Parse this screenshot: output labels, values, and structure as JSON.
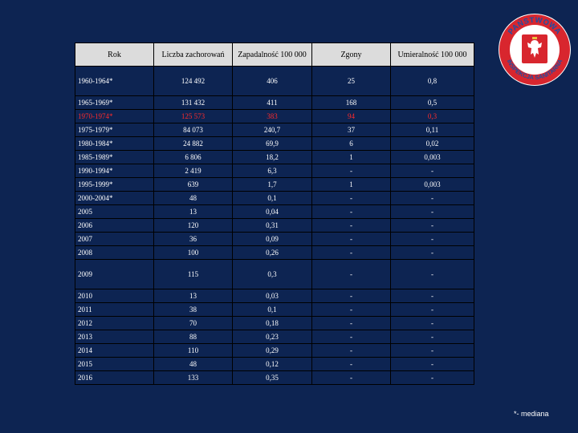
{
  "table": {
    "headers": [
      "Rok",
      "Liczba zachorowań",
      "Zapadalność 100 000",
      "Zgony",
      "Umieralność 100 000"
    ],
    "rows": [
      {
        "rok": "1960-1964*",
        "zachorowania": "124 492",
        "zapadalnosc": "406",
        "zgony": "25",
        "umieralnosc": "0,8",
        "tall": true,
        "highlight": false
      },
      {
        "rok": "1965-1969*",
        "zachorowania": "131 432",
        "zapadalnosc": "411",
        "zgony": "168",
        "umieralnosc": "0,5",
        "tall": false,
        "highlight": false
      },
      {
        "rok": "1970-1974*",
        "zachorowania": "125 573",
        "zapadalnosc": "383",
        "zgony": "94",
        "umieralnosc": "0,3",
        "tall": false,
        "highlight": true
      },
      {
        "rok": "1975-1979*",
        "zachorowania": "84 073",
        "zapadalnosc": "240,7",
        "zgony": "37",
        "umieralnosc": "0,11",
        "tall": false,
        "highlight": false
      },
      {
        "rok": "1980-1984*",
        "zachorowania": "24 882",
        "zapadalnosc": "69,9",
        "zgony": "6",
        "umieralnosc": "0,02",
        "tall": false,
        "highlight": false
      },
      {
        "rok": "1985-1989*",
        "zachorowania": "6 806",
        "zapadalnosc": "18,2",
        "zgony": "1",
        "umieralnosc": "0,003",
        "tall": false,
        "highlight": false
      },
      {
        "rok": "1990-1994*",
        "zachorowania": "2 419",
        "zapadalnosc": "6,3",
        "zgony": "-",
        "umieralnosc": "-",
        "tall": false,
        "highlight": false
      },
      {
        "rok": "1995-1999*",
        "zachorowania": "639",
        "zapadalnosc": "1,7",
        "zgony": "1",
        "umieralnosc": "0,003",
        "tall": false,
        "highlight": false
      },
      {
        "rok": "2000-2004*",
        "zachorowania": "48",
        "zapadalnosc": "0,1",
        "zgony": "-",
        "umieralnosc": "-",
        "tall": false,
        "highlight": false
      },
      {
        "rok": "2005",
        "zachorowania": "13",
        "zapadalnosc": "0,04",
        "zgony": "-",
        "umieralnosc": "-",
        "tall": false,
        "highlight": false
      },
      {
        "rok": "2006",
        "zachorowania": "120",
        "zapadalnosc": "0,31",
        "zgony": "-",
        "umieralnosc": "-",
        "tall": false,
        "highlight": false
      },
      {
        "rok": "2007",
        "zachorowania": "36",
        "zapadalnosc": "0,09",
        "zgony": "-",
        "umieralnosc": "-",
        "tall": false,
        "highlight": false
      },
      {
        "rok": "2008",
        "zachorowania": "100",
        "zapadalnosc": "0,26",
        "zgony": "-",
        "umieralnosc": "-",
        "tall": false,
        "highlight": false
      },
      {
        "rok": "2009",
        "zachorowania": "115",
        "zapadalnosc": "0,3",
        "zgony": "-",
        "umieralnosc": "-",
        "tall": true,
        "highlight": false
      },
      {
        "rok": "2010",
        "zachorowania": "13",
        "zapadalnosc": "0,03",
        "zgony": "-",
        "umieralnosc": "-",
        "tall": false,
        "highlight": false
      },
      {
        "rok": "2011",
        "zachorowania": "38",
        "zapadalnosc": "0,1",
        "zgony": "-",
        "umieralnosc": "-",
        "tall": false,
        "highlight": false
      },
      {
        "rok": "2012",
        "zachorowania": "70",
        "zapadalnosc": "0,18",
        "zgony": "-",
        "umieralnosc": "-",
        "tall": false,
        "highlight": false
      },
      {
        "rok": "2013",
        "zachorowania": "88",
        "zapadalnosc": "0,23",
        "zgony": "-",
        "umieralnosc": "-",
        "tall": false,
        "highlight": false
      },
      {
        "rok": "2014",
        "zachorowania": "110",
        "zapadalnosc": "0,29",
        "zgony": "-",
        "umieralnosc": "-",
        "tall": false,
        "highlight": false
      },
      {
        "rok": "2015",
        "zachorowania": "48",
        "zapadalnosc": "0,12",
        "zgony": "-",
        "umieralnosc": "-",
        "tall": false,
        "highlight": false
      },
      {
        "rok": "2016",
        "zachorowania": "133",
        "zapadalnosc": "0,35",
        "zgony": "-",
        "umieralnosc": "-",
        "tall": false,
        "highlight": false
      }
    ]
  },
  "logo": {
    "text_top": "PAŃSTWOWA",
    "text_bottom": "INSPEKCJA SANITARNA",
    "icon": "polish-eagle-emblem"
  },
  "footnote": "*- mediana",
  "colors": {
    "background": "#0d2452",
    "header_fill": "#dcdcdc",
    "highlight_row": "#ff2b2b",
    "logo_red": "#d8262e",
    "logo_blue": "#1f4fa3"
  }
}
